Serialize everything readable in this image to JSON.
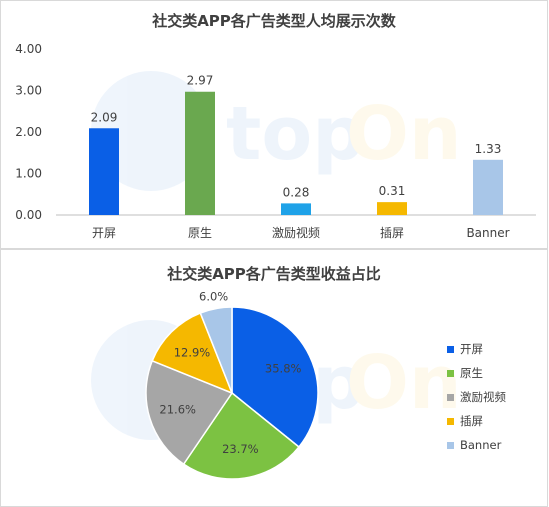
{
  "watermark": {
    "text_part1": "top",
    "text_part2": "On"
  },
  "chart_data": [
    {
      "type": "bar",
      "title": "社交类APP各广告类型人均展示次数",
      "categories": [
        "开屏",
        "原生",
        "激励视频",
        "插屏",
        "Banner"
      ],
      "values": [
        2.09,
        2.97,
        0.28,
        0.31,
        1.33
      ],
      "value_labels": [
        "2.09",
        "2.97",
        "0.28",
        "0.31",
        "1.33"
      ],
      "colors": [
        "#0a5fe6",
        "#6aa84f",
        "#1fa2e8",
        "#f5b800",
        "#a8c6e8"
      ],
      "ylim": [
        0,
        4
      ],
      "yticks": [
        "0.00",
        "1.00",
        "2.00",
        "3.00",
        "4.00"
      ],
      "xlabel": "",
      "ylabel": "",
      "grid": false
    },
    {
      "type": "pie",
      "title": "社交类APP各广告类型收益占比",
      "labels": [
        "开屏",
        "原生",
        "激励视频",
        "插屏",
        "Banner"
      ],
      "values": [
        35.8,
        23.7,
        21.6,
        12.9,
        6.0
      ],
      "value_labels": [
        "35.8%",
        "23.7%",
        "21.6%",
        "12.9%",
        "6.0%"
      ],
      "colors": [
        "#0a5fe6",
        "#7cc242",
        "#a6a6a6",
        "#f5b800",
        "#a8c6e8"
      ],
      "legend_position": "right"
    }
  ]
}
